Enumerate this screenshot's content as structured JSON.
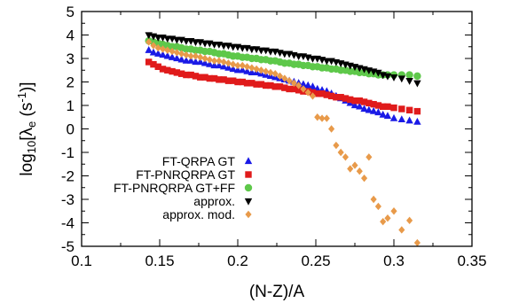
{
  "chart_data": {
    "type": "scatter",
    "title": "",
    "xlabel": "(N-Z)/A",
    "ylabel": {
      "prefix": "log",
      "sub": "10",
      "mid": "[λ",
      "sub2": "e",
      "open": " (s",
      "sup": "-1",
      "close": ")]"
    },
    "xlim": [
      0.1,
      0.35
    ],
    "ylim": [
      -5,
      5
    ],
    "xticks": [
      "0.1",
      "0.15",
      "0.2",
      "0.25",
      "0.3",
      "0.35"
    ],
    "yticks": [
      "-5",
      "-4",
      "-3",
      "-2",
      "-1",
      "0",
      "1",
      "2",
      "3",
      "4",
      "5"
    ],
    "grid": false,
    "legend_position": "bottom-left",
    "series": [
      {
        "name": "FT-QRPA GT",
        "marker": "triangle-up",
        "color": "#1a1ae6",
        "points": [
          [
            0.143,
            3.35
          ],
          [
            0.146,
            3.25
          ],
          [
            0.149,
            3.2
          ],
          [
            0.152,
            3.15
          ],
          [
            0.155,
            3.1
          ],
          [
            0.158,
            3.05
          ],
          [
            0.161,
            3.0
          ],
          [
            0.164,
            2.95
          ],
          [
            0.167,
            2.9
          ],
          [
            0.17,
            2.9
          ],
          [
            0.173,
            2.85
          ],
          [
            0.176,
            2.85
          ],
          [
            0.179,
            2.8
          ],
          [
            0.182,
            2.75
          ],
          [
            0.185,
            2.7
          ],
          [
            0.188,
            2.7
          ],
          [
            0.191,
            2.65
          ],
          [
            0.194,
            2.6
          ],
          [
            0.197,
            2.55
          ],
          [
            0.2,
            2.5
          ],
          [
            0.203,
            2.5
          ],
          [
            0.206,
            2.45
          ],
          [
            0.209,
            2.4
          ],
          [
            0.212,
            2.4
          ],
          [
            0.215,
            2.35
          ],
          [
            0.218,
            2.3
          ],
          [
            0.221,
            2.25
          ],
          [
            0.224,
            2.2
          ],
          [
            0.227,
            2.15
          ],
          [
            0.23,
            2.1
          ],
          [
            0.233,
            2.05
          ],
          [
            0.236,
            2.0
          ],
          [
            0.239,
            1.95
          ],
          [
            0.242,
            1.9
          ],
          [
            0.245,
            1.85
          ],
          [
            0.248,
            1.8
          ],
          [
            0.251,
            1.7
          ],
          [
            0.254,
            1.65
          ],
          [
            0.257,
            1.6
          ],
          [
            0.26,
            1.5
          ],
          [
            0.263,
            1.4
          ],
          [
            0.266,
            1.3
          ],
          [
            0.269,
            1.2
          ],
          [
            0.272,
            1.1
          ],
          [
            0.275,
            1.0
          ],
          [
            0.278,
            0.95
          ],
          [
            0.281,
            0.85
          ],
          [
            0.284,
            0.8
          ],
          [
            0.287,
            0.75
          ],
          [
            0.29,
            0.7
          ],
          [
            0.293,
            0.6
          ],
          [
            0.296,
            0.55
          ],
          [
            0.3,
            0.45
          ],
          [
            0.305,
            0.4
          ],
          [
            0.31,
            0.35
          ],
          [
            0.315,
            0.3
          ]
        ]
      },
      {
        "name": "FT-PNRQRPA GT",
        "marker": "square",
        "color": "#e01b1b",
        "points": [
          [
            0.143,
            2.85
          ],
          [
            0.146,
            2.75
          ],
          [
            0.149,
            2.65
          ],
          [
            0.152,
            2.55
          ],
          [
            0.155,
            2.5
          ],
          [
            0.158,
            2.45
          ],
          [
            0.161,
            2.4
          ],
          [
            0.164,
            2.35
          ],
          [
            0.167,
            2.3
          ],
          [
            0.17,
            2.3
          ],
          [
            0.173,
            2.25
          ],
          [
            0.176,
            2.2
          ],
          [
            0.179,
            2.2
          ],
          [
            0.182,
            2.15
          ],
          [
            0.185,
            2.15
          ],
          [
            0.188,
            2.1
          ],
          [
            0.191,
            2.1
          ],
          [
            0.194,
            2.05
          ],
          [
            0.197,
            2.05
          ],
          [
            0.2,
            2.0
          ],
          [
            0.203,
            2.0
          ],
          [
            0.206,
            1.95
          ],
          [
            0.209,
            1.95
          ],
          [
            0.212,
            1.9
          ],
          [
            0.215,
            1.9
          ],
          [
            0.218,
            1.85
          ],
          [
            0.221,
            1.85
          ],
          [
            0.224,
            1.8
          ],
          [
            0.227,
            1.8
          ],
          [
            0.23,
            1.75
          ],
          [
            0.233,
            1.7
          ],
          [
            0.236,
            1.7
          ],
          [
            0.239,
            1.65
          ],
          [
            0.242,
            1.6
          ],
          [
            0.245,
            1.6
          ],
          [
            0.248,
            1.55
          ],
          [
            0.251,
            1.5
          ],
          [
            0.254,
            1.5
          ],
          [
            0.257,
            1.45
          ],
          [
            0.26,
            1.4
          ],
          [
            0.263,
            1.35
          ],
          [
            0.266,
            1.35
          ],
          [
            0.269,
            1.3
          ],
          [
            0.272,
            1.25
          ],
          [
            0.275,
            1.2
          ],
          [
            0.278,
            1.2
          ],
          [
            0.281,
            1.15
          ],
          [
            0.284,
            1.1
          ],
          [
            0.287,
            1.05
          ],
          [
            0.29,
            1.0
          ],
          [
            0.293,
            0.95
          ],
          [
            0.296,
            0.95
          ],
          [
            0.3,
            0.9
          ],
          [
            0.305,
            0.85
          ],
          [
            0.31,
            0.8
          ],
          [
            0.315,
            0.75
          ]
        ]
      },
      {
        "name": "FT-PNRQRPA GT+FF",
        "marker": "circle",
        "color": "#5ec84a",
        "points": [
          [
            0.143,
            3.75
          ],
          [
            0.146,
            3.7
          ],
          [
            0.149,
            3.65
          ],
          [
            0.152,
            3.6
          ],
          [
            0.155,
            3.55
          ],
          [
            0.158,
            3.5
          ],
          [
            0.161,
            3.5
          ],
          [
            0.164,
            3.45
          ],
          [
            0.167,
            3.4
          ],
          [
            0.17,
            3.4
          ],
          [
            0.173,
            3.35
          ],
          [
            0.176,
            3.35
          ],
          [
            0.179,
            3.3
          ],
          [
            0.182,
            3.3
          ],
          [
            0.185,
            3.25
          ],
          [
            0.188,
            3.2
          ],
          [
            0.191,
            3.2
          ],
          [
            0.194,
            3.15
          ],
          [
            0.197,
            3.1
          ],
          [
            0.2,
            3.1
          ],
          [
            0.203,
            3.05
          ],
          [
            0.206,
            3.05
          ],
          [
            0.209,
            3.0
          ],
          [
            0.212,
            3.0
          ],
          [
            0.215,
            2.95
          ],
          [
            0.218,
            2.95
          ],
          [
            0.221,
            2.9
          ],
          [
            0.224,
            2.9
          ],
          [
            0.227,
            2.85
          ],
          [
            0.23,
            2.8
          ],
          [
            0.233,
            2.8
          ],
          [
            0.236,
            2.75
          ],
          [
            0.239,
            2.75
          ],
          [
            0.242,
            2.7
          ],
          [
            0.245,
            2.7
          ],
          [
            0.248,
            2.65
          ],
          [
            0.251,
            2.65
          ],
          [
            0.254,
            2.6
          ],
          [
            0.257,
            2.6
          ],
          [
            0.26,
            2.55
          ],
          [
            0.263,
            2.55
          ],
          [
            0.266,
            2.5
          ],
          [
            0.269,
            2.5
          ],
          [
            0.272,
            2.45
          ],
          [
            0.275,
            2.45
          ],
          [
            0.278,
            2.4
          ],
          [
            0.281,
            2.4
          ],
          [
            0.284,
            2.35
          ],
          [
            0.287,
            2.35
          ],
          [
            0.29,
            2.3
          ],
          [
            0.293,
            2.3
          ],
          [
            0.296,
            2.3
          ],
          [
            0.3,
            2.3
          ],
          [
            0.305,
            2.3
          ],
          [
            0.31,
            2.3
          ],
          [
            0.315,
            2.25
          ]
        ]
      },
      {
        "name": "approx.",
        "marker": "triangle-down",
        "color": "#000000",
        "points": [
          [
            0.143,
            4.0
          ],
          [
            0.146,
            3.95
          ],
          [
            0.149,
            3.9
          ],
          [
            0.152,
            3.9
          ],
          [
            0.155,
            3.85
          ],
          [
            0.158,
            3.85
          ],
          [
            0.161,
            3.8
          ],
          [
            0.164,
            3.8
          ],
          [
            0.167,
            3.75
          ],
          [
            0.17,
            3.75
          ],
          [
            0.173,
            3.7
          ],
          [
            0.176,
            3.7
          ],
          [
            0.179,
            3.65
          ],
          [
            0.182,
            3.65
          ],
          [
            0.185,
            3.6
          ],
          [
            0.188,
            3.6
          ],
          [
            0.191,
            3.55
          ],
          [
            0.194,
            3.55
          ],
          [
            0.197,
            3.5
          ],
          [
            0.2,
            3.5
          ],
          [
            0.203,
            3.45
          ],
          [
            0.206,
            3.45
          ],
          [
            0.209,
            3.4
          ],
          [
            0.212,
            3.4
          ],
          [
            0.215,
            3.35
          ],
          [
            0.218,
            3.35
          ],
          [
            0.221,
            3.3
          ],
          [
            0.224,
            3.3
          ],
          [
            0.227,
            3.25
          ],
          [
            0.23,
            3.2
          ],
          [
            0.233,
            3.2
          ],
          [
            0.236,
            3.15
          ],
          [
            0.239,
            3.1
          ],
          [
            0.242,
            3.1
          ],
          [
            0.245,
            3.05
          ],
          [
            0.248,
            3.0
          ],
          [
            0.251,
            3.0
          ],
          [
            0.254,
            2.95
          ],
          [
            0.257,
            2.9
          ],
          [
            0.26,
            2.9
          ],
          [
            0.263,
            2.85
          ],
          [
            0.266,
            2.8
          ],
          [
            0.269,
            2.75
          ],
          [
            0.272,
            2.7
          ],
          [
            0.275,
            2.65
          ],
          [
            0.278,
            2.6
          ],
          [
            0.281,
            2.55
          ],
          [
            0.284,
            2.5
          ],
          [
            0.287,
            2.45
          ],
          [
            0.29,
            2.4
          ],
          [
            0.293,
            2.3
          ],
          [
            0.296,
            2.25
          ],
          [
            0.3,
            2.2
          ],
          [
            0.305,
            2.15
          ],
          [
            0.31,
            2.05
          ],
          [
            0.315,
            1.95
          ]
        ]
      },
      {
        "name": "approx. mod.",
        "marker": "diamond",
        "color": "#e89a4a",
        "points": [
          [
            0.143,
            3.7
          ],
          [
            0.146,
            3.55
          ],
          [
            0.149,
            3.45
          ],
          [
            0.152,
            3.4
          ],
          [
            0.155,
            3.35
          ],
          [
            0.158,
            3.3
          ],
          [
            0.161,
            3.25
          ],
          [
            0.164,
            3.2
          ],
          [
            0.167,
            3.15
          ],
          [
            0.17,
            3.1
          ],
          [
            0.173,
            3.1
          ],
          [
            0.176,
            3.05
          ],
          [
            0.179,
            3.0
          ],
          [
            0.182,
            2.95
          ],
          [
            0.185,
            2.9
          ],
          [
            0.188,
            2.9
          ],
          [
            0.191,
            2.85
          ],
          [
            0.194,
            2.8
          ],
          [
            0.197,
            2.75
          ],
          [
            0.2,
            2.7
          ],
          [
            0.203,
            2.7
          ],
          [
            0.206,
            2.65
          ],
          [
            0.209,
            2.6
          ],
          [
            0.212,
            2.55
          ],
          [
            0.215,
            2.5
          ],
          [
            0.218,
            2.45
          ],
          [
            0.221,
            2.4
          ],
          [
            0.224,
            2.35
          ],
          [
            0.227,
            2.25
          ],
          [
            0.23,
            2.15
          ],
          [
            0.233,
            2.05
          ],
          [
            0.236,
            1.95
          ],
          [
            0.239,
            1.85
          ],
          [
            0.242,
            1.7
          ],
          [
            0.245,
            1.55
          ],
          [
            0.248,
            1.4
          ],
          [
            0.251,
            0.5
          ],
          [
            0.254,
            0.45
          ],
          [
            0.257,
            0.45
          ],
          [
            0.26,
            0.0
          ],
          [
            0.263,
            -0.7
          ],
          [
            0.266,
            -1.0
          ],
          [
            0.269,
            -1.2
          ],
          [
            0.272,
            -1.7
          ],
          [
            0.275,
            -1.55
          ],
          [
            0.278,
            -1.8
          ],
          [
            0.281,
            -2.1
          ],
          [
            0.284,
            -1.2
          ],
          [
            0.287,
            -3.0
          ],
          [
            0.29,
            -3.3
          ],
          [
            0.293,
            -3.95
          ],
          [
            0.296,
            -3.8
          ],
          [
            0.3,
            -3.5
          ],
          [
            0.305,
            -4.3
          ],
          [
            0.31,
            -3.9
          ],
          [
            0.315,
            -4.85
          ]
        ]
      }
    ]
  }
}
